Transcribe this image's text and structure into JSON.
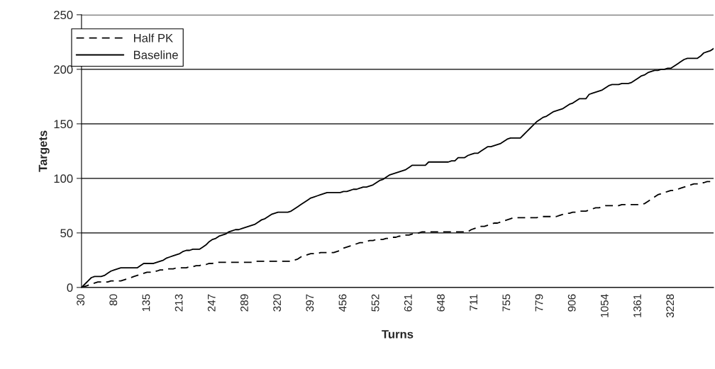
{
  "chart_data": {
    "type": "line",
    "xlabel": "Turns",
    "ylabel": "Targets",
    "categories": [
      "30",
      null,
      null,
      null,
      null,
      null,
      null,
      null,
      null,
      null,
      "80",
      null,
      null,
      null,
      null,
      null,
      null,
      null,
      null,
      null,
      "135",
      null,
      null,
      null,
      null,
      null,
      null,
      null,
      null,
      null,
      "213",
      null,
      null,
      null,
      null,
      null,
      null,
      null,
      null,
      null,
      "247",
      null,
      null,
      null,
      null,
      null,
      null,
      null,
      null,
      null,
      "289",
      null,
      null,
      null,
      null,
      null,
      null,
      null,
      null,
      null,
      "320",
      null,
      null,
      null,
      null,
      null,
      null,
      null,
      null,
      null,
      "397",
      null,
      null,
      null,
      null,
      null,
      null,
      null,
      null,
      null,
      "456",
      null,
      null,
      null,
      null,
      null,
      null,
      null,
      null,
      null,
      "552",
      null,
      null,
      null,
      null,
      null,
      null,
      null,
      null,
      null,
      "621",
      null,
      null,
      null,
      null,
      null,
      null,
      null,
      null,
      null,
      "648",
      null,
      null,
      null,
      null,
      null,
      null,
      null,
      null,
      null,
      "711",
      null,
      null,
      null,
      null,
      null,
      null,
      null,
      null,
      null,
      "755",
      null,
      null,
      null,
      null,
      null,
      null,
      null,
      null,
      null,
      "779",
      null,
      null,
      null,
      null,
      null,
      null,
      null,
      null,
      null,
      "906",
      null,
      null,
      null,
      null,
      null,
      null,
      null,
      null,
      null,
      "1054",
      null,
      null,
      null,
      null,
      null,
      null,
      null,
      null,
      null,
      "1361",
      null,
      null,
      null,
      null,
      null,
      null,
      null,
      null,
      null,
      "3228",
      null,
      null,
      null,
      null,
      null,
      null,
      null,
      null,
      null,
      null,
      null,
      null,
      null
    ],
    "series": [
      {
        "name": "Half PK",
        "color": "#000000",
        "line_style": "dashed",
        "values": [
          0,
          1,
          2,
          3,
          4,
          5,
          5,
          5,
          5,
          6,
          6,
          6,
          6,
          7,
          8,
          9,
          10,
          11,
          12,
          13,
          14,
          14,
          15,
          15,
          16,
          16,
          17,
          17,
          17,
          18,
          18,
          18,
          18,
          19,
          19,
          20,
          20,
          21,
          21,
          22,
          22,
          23,
          23,
          23,
          23,
          23,
          23,
          23,
          23,
          23,
          23,
          23,
          23,
          24,
          24,
          24,
          24,
          24,
          24,
          24,
          24,
          24,
          24,
          24,
          24,
          25,
          26,
          28,
          29,
          30,
          31,
          31,
          31,
          32,
          32,
          32,
          32,
          32,
          33,
          34,
          36,
          37,
          38,
          39,
          40,
          41,
          41,
          42,
          43,
          43,
          44,
          44,
          44,
          45,
          45,
          46,
          46,
          47,
          47,
          48,
          48,
          49,
          50,
          50,
          51,
          51,
          51,
          51,
          51,
          51,
          51,
          51,
          51,
          51,
          51,
          51,
          51,
          51,
          51,
          53,
          54,
          55,
          56,
          56,
          57,
          58,
          59,
          59,
          60,
          61,
          62,
          63,
          64,
          64,
          64,
          64,
          64,
          64,
          64,
          64,
          65,
          65,
          65,
          65,
          65,
          65,
          66,
          67,
          68,
          68,
          69,
          69,
          70,
          70,
          70,
          71,
          72,
          73,
          73,
          74,
          75,
          75,
          75,
          75,
          75,
          76,
          76,
          76,
          76,
          76,
          76,
          76,
          77,
          79,
          81,
          83,
          85,
          86,
          87,
          88,
          89,
          89,
          90,
          91,
          92,
          93,
          94,
          95,
          95,
          96,
          96,
          97,
          97,
          97
        ]
      },
      {
        "name": "Baseline",
        "color": "#000000",
        "line_style": "solid",
        "values": [
          0,
          3,
          6,
          9,
          10,
          10,
          10,
          11,
          13,
          15,
          16,
          17,
          18,
          18,
          18,
          18,
          18,
          18,
          20,
          22,
          22,
          22,
          22,
          23,
          24,
          25,
          27,
          28,
          29,
          30,
          31,
          33,
          34,
          34,
          35,
          35,
          35,
          37,
          39,
          42,
          44,
          45,
          47,
          48,
          49,
          51,
          52,
          53,
          53,
          54,
          55,
          56,
          57,
          58,
          60,
          62,
          63,
          65,
          67,
          68,
          69,
          69,
          69,
          69,
          70,
          72,
          74,
          76,
          78,
          80,
          82,
          83,
          84,
          85,
          86,
          87,
          87,
          87,
          87,
          87,
          88,
          88,
          89,
          90,
          90,
          91,
          92,
          92,
          93,
          94,
          96,
          98,
          99,
          101,
          103,
          104,
          105,
          106,
          107,
          108,
          110,
          112,
          112,
          112,
          112,
          112,
          115,
          115,
          115,
          115,
          115,
          115,
          115,
          116,
          116,
          119,
          119,
          119,
          121,
          122,
          123,
          123,
          125,
          127,
          129,
          129,
          130,
          131,
          132,
          134,
          136,
          137,
          137,
          137,
          137,
          140,
          143,
          146,
          149,
          152,
          154,
          156,
          157,
          159,
          161,
          162,
          163,
          164,
          166,
          168,
          169,
          171,
          173,
          173,
          173,
          177,
          178,
          179,
          180,
          181,
          183,
          185,
          186,
          186,
          186,
          187,
          187,
          187,
          188,
          190,
          192,
          194,
          195,
          197,
          198,
          199,
          199,
          200,
          200,
          201,
          201,
          203,
          205,
          207,
          209,
          210,
          210,
          210,
          210,
          212,
          215,
          216,
          217,
          219
        ]
      }
    ],
    "ylim": [
      0,
      250
    ],
    "yticks": [
      0,
      50,
      100,
      150,
      200,
      250
    ],
    "grid": "y",
    "legend": "top left",
    "marker": "none"
  }
}
